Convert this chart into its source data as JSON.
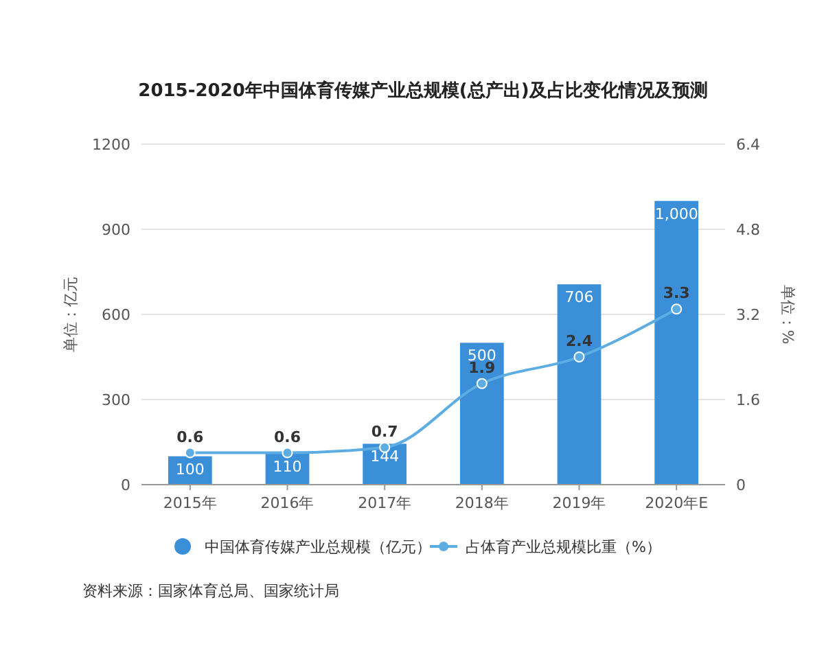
{
  "chart_data": {
    "type": "bar",
    "title": "2015-2020年中国体育传媒产业总规模(总产出)及占比变化情况及预测",
    "categories": [
      "2015年",
      "2016年",
      "2017年",
      "2018年",
      "2019年",
      "2020年E"
    ],
    "series": [
      {
        "name": "中国体育传媒产业总规模（亿元）",
        "color": "#3a8fd8",
        "values": [
          100,
          110,
          144,
          500,
          706,
          1000
        ],
        "value_labels": [
          "100",
          "110",
          "144",
          "500",
          "706",
          "1,000"
        ]
      },
      {
        "name": "占体育产业总规模比重（%）",
        "type": "line",
        "axis": "y2",
        "color": "#5dade2",
        "values": [
          0.6,
          0.6,
          0.7,
          1.9,
          2.4,
          3.3
        ],
        "value_labels": [
          "0.6",
          "0.6",
          "0.7",
          "1.9",
          "2.4",
          "3.3"
        ],
        "marker": "circle"
      }
    ],
    "ylabel": "单位：亿元",
    "y2label": "单位：%",
    "ylim": [
      0,
      1200
    ],
    "yticks": [
      0,
      300,
      600,
      900,
      1200
    ],
    "y2lim": [
      0,
      6.4
    ],
    "y2ticks": [
      0,
      1.6,
      3.2,
      4.8,
      6.4
    ],
    "grid": "y",
    "legend": "bottom",
    "annotations": [
      "资料来源：国家体育总局、国家统计局"
    ]
  }
}
